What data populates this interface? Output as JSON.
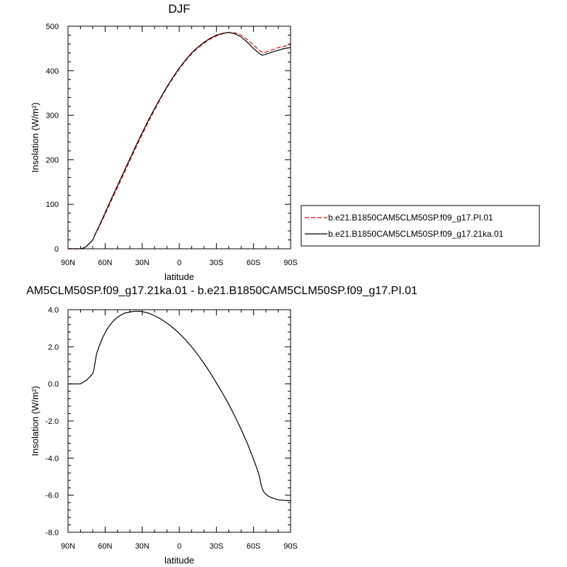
{
  "chart_data": [
    {
      "type": "line",
      "title": "DJF",
      "xlabel": "latitude",
      "ylabel": "Insolation (W/m²)",
      "x_ticks": [
        "90N",
        "60N",
        "30N",
        "0",
        "30S",
        "60S",
        "90S"
      ],
      "y_ticks": [
        "0",
        "100",
        "200",
        "300",
        "400",
        "500"
      ],
      "xlim": [
        90,
        -90
      ],
      "ylim": [
        0,
        500
      ],
      "legend_placement": "outside-right",
      "series": [
        {
          "name": "b.e21.B1850CAM5CLM50SP.f09_g17.PI.01",
          "color": "#ff0000",
          "style": "dashed",
          "x": [
            90,
            85,
            80,
            77,
            75,
            72,
            70,
            68,
            65,
            60,
            55,
            50,
            45,
            40,
            35,
            30,
            25,
            20,
            15,
            10,
            5,
            0,
            -5,
            -10,
            -15,
            -20,
            -25,
            -30,
            -35,
            -40,
            -45,
            -50,
            -55,
            -60,
            -65,
            -67,
            -70,
            -75,
            -80,
            -85,
            -90
          ],
          "y": [
            0,
            0,
            0,
            2,
            6,
            14,
            20,
            32,
            48,
            78,
            108,
            138,
            168,
            198,
            228,
            257,
            285,
            312,
            338,
            362,
            384,
            404,
            422,
            438,
            451,
            462,
            471,
            478,
            483,
            486,
            485,
            480,
            470,
            458,
            445,
            441,
            442,
            447,
            452,
            455,
            458
          ]
        },
        {
          "name": "b.e21.B1850CAM5CLM50SP.f09_g17.21ka.01",
          "color": "#000000",
          "style": "solid",
          "x": [
            90,
            85,
            80,
            77,
            75,
            72,
            70,
            68,
            65,
            60,
            55,
            50,
            45,
            40,
            35,
            30,
            25,
            20,
            15,
            10,
            5,
            0,
            -5,
            -10,
            -15,
            -20,
            -25,
            -30,
            -35,
            -40,
            -45,
            -50,
            -55,
            -60,
            -65,
            -67,
            -70,
            -75,
            -80,
            -85,
            -90
          ],
          "y": [
            0,
            0,
            0,
            2,
            6,
            14,
            20,
            33,
            50,
            81,
            112,
            142,
            172,
            202,
            232,
            261,
            289,
            315,
            340,
            364,
            386,
            406,
            424,
            440,
            453,
            464,
            473,
            480,
            484,
            486,
            483,
            476,
            464,
            450,
            438,
            435,
            437,
            442,
            446,
            450,
            452
          ]
        }
      ]
    },
    {
      "type": "line",
      "title": "AM5CLM50SP.f09_g17.21ka.01 - b.e21.B1850CAM5CLM50SP.f09_g17.PI.01",
      "xlabel": "latitude",
      "ylabel": "Insolation (W/m²)",
      "x_ticks": [
        "90N",
        "60N",
        "30N",
        "0",
        "30S",
        "60S",
        "90S"
      ],
      "y_ticks": [
        "4.0",
        "2.0",
        "0.0",
        "-2.0",
        "-4.0",
        "-6.0",
        "-8.0"
      ],
      "xlim": [
        90,
        -90
      ],
      "ylim": [
        -8,
        4
      ],
      "series": [
        {
          "color": "#000000",
          "style": "solid",
          "x": [
            90,
            85,
            82,
            80,
            75,
            70,
            69,
            68,
            67,
            65,
            62,
            58,
            54,
            50,
            45,
            40,
            35,
            30,
            25,
            20,
            15,
            10,
            5,
            0,
            -5,
            -10,
            -15,
            -20,
            -25,
            -30,
            -35,
            -40,
            -45,
            -50,
            -55,
            -60,
            -63,
            -65,
            -66,
            -67,
            -68,
            -70,
            -72,
            -75,
            -80,
            -85,
            -90
          ],
          "y": [
            0,
            0,
            0,
            0,
            0.2,
            0.55,
            0.8,
            1.2,
            1.6,
            2.0,
            2.5,
            3.0,
            3.35,
            3.6,
            3.8,
            3.88,
            3.92,
            3.9,
            3.82,
            3.68,
            3.5,
            3.28,
            3.02,
            2.72,
            2.38,
            2.0,
            1.57,
            1.1,
            0.6,
            0.05,
            -0.5,
            -1.1,
            -1.75,
            -2.45,
            -3.2,
            -4.05,
            -4.6,
            -5.05,
            -5.4,
            -5.62,
            -5.8,
            -5.95,
            -6.05,
            -6.15,
            -6.25,
            -6.28,
            -6.3
          ]
        }
      ]
    }
  ]
}
